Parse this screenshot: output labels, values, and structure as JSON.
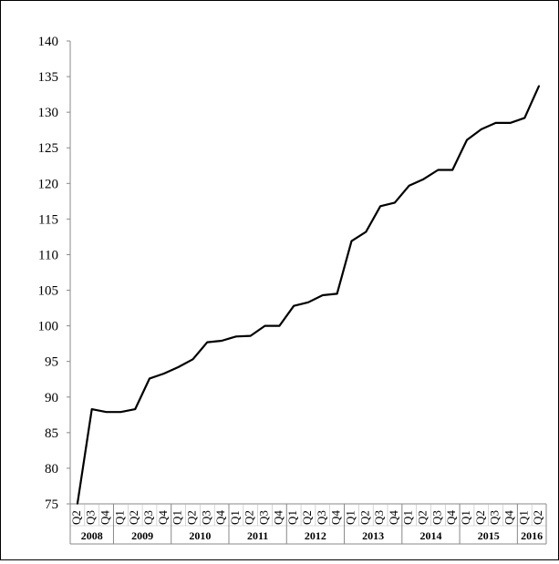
{
  "chart_data": {
    "type": "line",
    "title": "",
    "xlabel": "",
    "ylabel": "",
    "ylim": [
      75,
      140
    ],
    "yticks": [
      75,
      80,
      85,
      90,
      95,
      100,
      105,
      110,
      115,
      120,
      125,
      130,
      135,
      140
    ],
    "grid": false,
    "legend": "none",
    "line_color": "#000000",
    "years": [
      {
        "label": "2008",
        "quarters": [
          "Q2",
          "Q3",
          "Q4"
        ]
      },
      {
        "label": "2009",
        "quarters": [
          "Q1",
          "Q2",
          "Q3",
          "Q4"
        ]
      },
      {
        "label": "2010",
        "quarters": [
          "Q1",
          "Q2",
          "Q3",
          "Q4"
        ]
      },
      {
        "label": "2011",
        "quarters": [
          "Q1",
          "Q2",
          "Q3",
          "Q4"
        ]
      },
      {
        "label": "2012",
        "quarters": [
          "Q1",
          "Q2",
          "Q3",
          "Q4"
        ]
      },
      {
        "label": "2013",
        "quarters": [
          "Q1",
          "Q2",
          "Q3",
          "Q4"
        ]
      },
      {
        "label": "2014",
        "quarters": [
          "Q1",
          "Q2",
          "Q3",
          "Q4"
        ]
      },
      {
        "label": "2015",
        "quarters": [
          "Q1",
          "Q2",
          "Q3",
          "Q4"
        ]
      },
      {
        "label": "2016",
        "quarters": [
          "Q1",
          "Q2"
        ]
      }
    ],
    "values": [
      75.0,
      88.3,
      87.9,
      87.9,
      88.3,
      92.6,
      93.3,
      94.2,
      95.3,
      97.7,
      97.9,
      98.5,
      98.6,
      100.0,
      100.0,
      102.8,
      103.3,
      104.3,
      104.5,
      111.9,
      113.2,
      116.8,
      117.3,
      119.7,
      120.6,
      121.9,
      121.9,
      126.1,
      127.6,
      128.5,
      128.5,
      129.2,
      133.7
    ]
  }
}
